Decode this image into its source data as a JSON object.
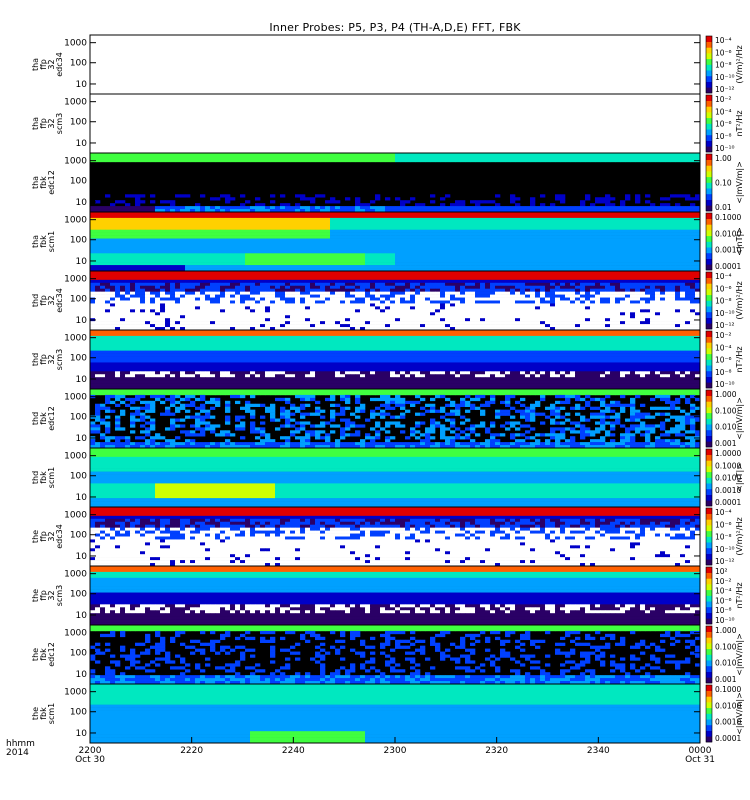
{
  "chart_data": {
    "type": "heatmap",
    "title": "Inner Probes: P5, P3, P4 (TH-A,D,E) FFT, FBK",
    "xaxis": {
      "label_row1": "hhmm",
      "label_row2": "2014",
      "ticks": [
        {
          "t": 0,
          "label": "2200",
          "sub": "Oct 30"
        },
        {
          "t": 20,
          "label": "2220",
          "sub": ""
        },
        {
          "t": 40,
          "label": "2240",
          "sub": ""
        },
        {
          "t": 60,
          "label": "2300",
          "sub": ""
        },
        {
          "t": 80,
          "label": "2320",
          "sub": ""
        },
        {
          "t": 100,
          "label": "2340",
          "sub": ""
        },
        {
          "t": 120,
          "label": "0000",
          "sub": "Oct 31"
        }
      ],
      "range_minutes": [
        0,
        120
      ]
    },
    "panels": [
      {
        "label": [
          "tha",
          "ffp",
          "32",
          "edc34"
        ],
        "yticks": [
          "1000",
          "100",
          "10"
        ],
        "unit": "(V/m)²/Hz",
        "cbar_ticks": [
          "10⁻⁴",
          "10⁻⁶",
          "10⁻⁸",
          "10⁻¹⁰",
          "10⁻¹²"
        ],
        "kind": "empty"
      },
      {
        "label": [
          "tha",
          "ffp",
          "32",
          "scm3"
        ],
        "yticks": [
          "1000",
          "100",
          "10"
        ],
        "unit": "nT²/Hz",
        "cbar_ticks": [
          "10⁻²",
          "10⁻⁴",
          "10⁻⁶",
          "10⁻⁸",
          "10⁻¹⁰"
        ],
        "kind": "empty"
      },
      {
        "label": [
          "tha",
          "fbk",
          "edc12"
        ],
        "yticks": [
          "1000",
          "100",
          "10"
        ],
        "unit": "<|mV/m|>",
        "cbar_ticks": [
          "1.00",
          "0.10",
          "0.01"
        ],
        "kind": "fbk_e_a"
      },
      {
        "label": [
          "tha",
          "fbk",
          "scm1"
        ],
        "yticks": [
          "1000",
          "100",
          "10"
        ],
        "unit": "<|nT|>",
        "cbar_ticks": [
          "0.1000",
          "0.0100",
          "0.0010",
          "0.0001"
        ],
        "kind": "fbk_b_a"
      },
      {
        "label": [
          "thd",
          "ffp",
          "32",
          "edc34"
        ],
        "yticks": [
          "1000",
          "100",
          "10"
        ],
        "unit": "(V/m)²/Hz",
        "cbar_ticks": [
          "10⁻⁴",
          "10⁻⁶",
          "10⁻⁸",
          "10⁻¹⁰",
          "10⁻¹²"
        ],
        "kind": "ffp_e"
      },
      {
        "label": [
          "thd",
          "ffp",
          "32",
          "scm3"
        ],
        "yticks": [
          "1000",
          "100",
          "10"
        ],
        "unit": "nT²/Hz",
        "cbar_ticks": [
          "10⁻²",
          "10⁻⁴",
          "10⁻⁶",
          "10⁻⁸",
          "10⁻¹⁰"
        ],
        "kind": "ffp_b"
      },
      {
        "label": [
          "thd",
          "fbk",
          "edc12"
        ],
        "yticks": [
          "1000",
          "100",
          "10"
        ],
        "unit": "<|mV/m|>",
        "cbar_ticks": [
          "1.000",
          "0.100",
          "0.010",
          "0.001"
        ],
        "kind": "fbk_e_d"
      },
      {
        "label": [
          "thd",
          "fbk",
          "scm1"
        ],
        "yticks": [
          "1000",
          "100",
          "10"
        ],
        "unit": "<|nT|>",
        "cbar_ticks": [
          "1.0000",
          "0.1000",
          "0.0100",
          "0.0010",
          "0.0001"
        ],
        "kind": "fbk_b_d"
      },
      {
        "label": [
          "the",
          "ffp",
          "32",
          "edc34"
        ],
        "yticks": [
          "1000",
          "100",
          "10"
        ],
        "unit": "(V/m)²/Hz",
        "cbar_ticks": [
          "10⁻⁴",
          "10⁻⁶",
          "10⁻⁸",
          "10⁻¹⁰",
          "10⁻¹²"
        ],
        "kind": "ffp_e"
      },
      {
        "label": [
          "the",
          "ffp",
          "32",
          "scm3"
        ],
        "yticks": [
          "1000",
          "100",
          "10"
        ],
        "unit": "nT²/Hz",
        "cbar_ticks": [
          "10²",
          "10⁻²",
          "10⁻⁴",
          "10⁻⁶",
          "10⁻⁸",
          "10⁻¹⁰"
        ],
        "kind": "ffp_b_e"
      },
      {
        "label": [
          "the",
          "fbk",
          "edc12"
        ],
        "yticks": [
          "1000",
          "100",
          "10"
        ],
        "unit": "<|mV/m|>",
        "cbar_ticks": [
          "1.000",
          "0.100",
          "0.010",
          "0.001"
        ],
        "kind": "fbk_e_e"
      },
      {
        "label": [
          "the",
          "fbk",
          "scm1"
        ],
        "yticks": [
          "1000",
          "100",
          "10"
        ],
        "unit": "<|mV/m|>",
        "cbar_ticks": [
          "0.1000",
          "0.0100",
          "0.0010",
          "0.0001"
        ],
        "kind": "fbk_b_e"
      }
    ],
    "colorscale": [
      "#ffffff",
      "#2a0066",
      "#0000c8",
      "#0040ff",
      "#00a0ff",
      "#00e8c0",
      "#40ff40",
      "#d0ff00",
      "#ffd000",
      "#ff6000",
      "#e00000"
    ]
  }
}
